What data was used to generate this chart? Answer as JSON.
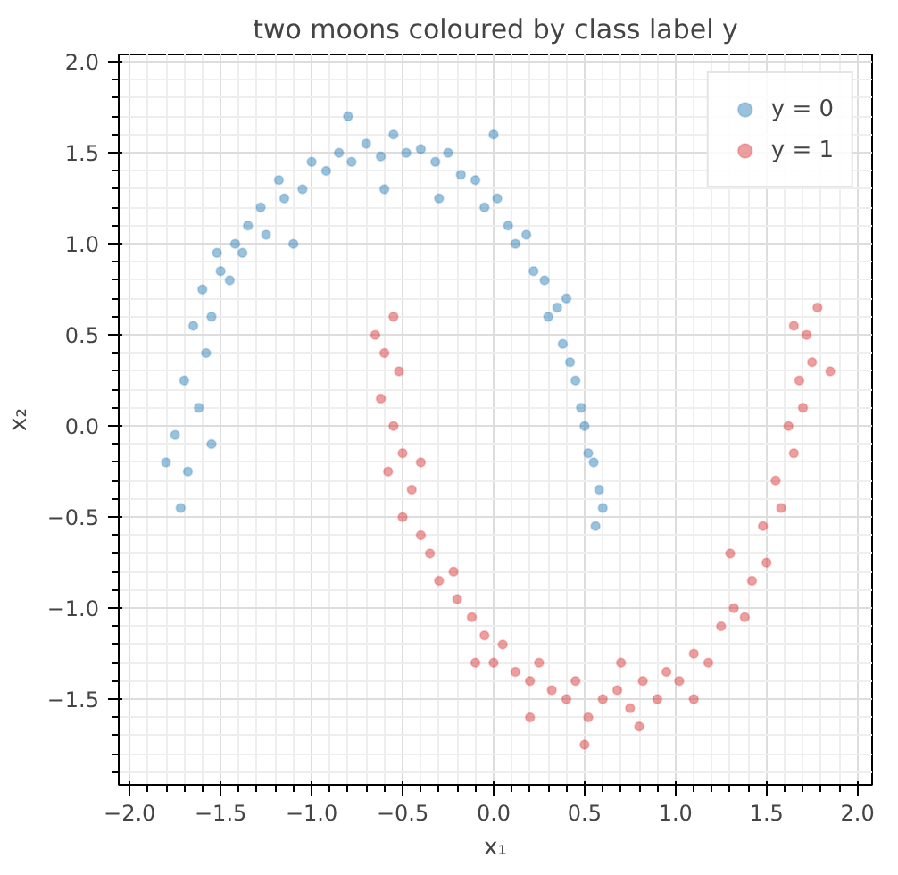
{
  "chart_data": {
    "type": "scatter",
    "title": "two moons coloured by class label y",
    "xlabel": "x₁",
    "ylabel": "x₂",
    "xlim": [
      -2.06,
      2.08
    ],
    "ylim": [
      -1.97,
      2.04
    ],
    "xticks": [
      {
        "value": -2,
        "label": "−2.0"
      },
      {
        "value": -1.5,
        "label": "−1.5"
      },
      {
        "value": -1,
        "label": "−1.0"
      },
      {
        "value": -0.5,
        "label": "−0.5"
      },
      {
        "value": 0,
        "label": "0.0"
      },
      {
        "value": 0.5,
        "label": "0.5"
      },
      {
        "value": 1,
        "label": "1.0"
      },
      {
        "value": 1.5,
        "label": "1.5"
      },
      {
        "value": 2,
        "label": "2.0"
      }
    ],
    "yticks": [
      {
        "value": -1.5,
        "label": "−1.5"
      },
      {
        "value": -1,
        "label": "−1.0"
      },
      {
        "value": -0.5,
        "label": "−0.5"
      },
      {
        "value": 0,
        "label": "0.0"
      },
      {
        "value": 0.5,
        "label": "0.5"
      },
      {
        "value": 1,
        "label": "1.0"
      },
      {
        "value": 1.5,
        "label": "1.5"
      },
      {
        "value": 2,
        "label": "2.0"
      }
    ],
    "grid": true,
    "legend": "top right",
    "marker": "circle",
    "series": [
      {
        "name": "y = 0",
        "color": "#1f77b4",
        "x": [
          -1.72,
          -1.68,
          -1.75,
          -1.62,
          -1.7,
          -1.58,
          -1.65,
          -1.55,
          -1.6,
          -1.5,
          -1.52,
          -1.42,
          -1.45,
          -1.35,
          -1.38,
          -1.28,
          -1.25,
          -1.15,
          -1.18,
          -1.05,
          -1.0,
          -0.92,
          -0.85,
          -0.78,
          -0.7,
          -0.62,
          -0.55,
          -0.48,
          -0.4,
          -0.32,
          -0.25,
          -0.18,
          -0.1,
          -0.05,
          0.02,
          0.08,
          0.12,
          0.18,
          0.22,
          0.28,
          0.3,
          0.35,
          0.38,
          0.42,
          0.45,
          0.48,
          0.5,
          0.52,
          0.55,
          0.58,
          0.6,
          0.56,
          -0.6,
          -0.3,
          -1.1,
          0.4,
          -1.55,
          -1.8,
          -0.8,
          0.0
        ],
        "values": [
          -0.45,
          -0.25,
          -0.05,
          0.1,
          0.25,
          0.4,
          0.55,
          0.6,
          0.75,
          0.85,
          0.95,
          1.0,
          0.8,
          1.1,
          0.95,
          1.2,
          1.05,
          1.25,
          1.35,
          1.3,
          1.45,
          1.4,
          1.5,
          1.45,
          1.55,
          1.48,
          1.6,
          1.5,
          1.52,
          1.45,
          1.5,
          1.38,
          1.35,
          1.2,
          1.25,
          1.1,
          1.0,
          1.05,
          0.85,
          0.8,
          0.6,
          0.65,
          0.45,
          0.35,
          0.25,
          0.1,
          0.0,
          -0.15,
          -0.2,
          -0.35,
          -0.45,
          -0.55,
          1.3,
          1.25,
          1.0,
          0.7,
          -0.1,
          -0.2,
          1.7,
          1.6
        ]
      },
      {
        "name": "y = 1",
        "color": "#d62728",
        "x": [
          -0.55,
          -0.6,
          -0.52,
          -0.62,
          -0.55,
          -0.5,
          -0.58,
          -0.45,
          -0.5,
          -0.4,
          -0.35,
          -0.3,
          -0.22,
          -0.2,
          -0.12,
          -0.05,
          0.0,
          0.05,
          0.12,
          0.2,
          0.25,
          0.32,
          0.4,
          0.45,
          0.52,
          0.6,
          0.68,
          0.75,
          0.82,
          0.9,
          0.95,
          1.02,
          1.1,
          1.18,
          1.25,
          1.32,
          1.38,
          1.42,
          1.5,
          1.48,
          1.58,
          1.55,
          1.65,
          1.62,
          1.7,
          1.68,
          1.75,
          1.72,
          1.78,
          1.65,
          -0.65,
          0.5,
          0.8,
          -0.1,
          1.3,
          0.7,
          -0.4,
          1.85,
          0.2,
          1.1
        ],
        "values": [
          0.6,
          0.4,
          0.3,
          0.15,
          0.0,
          -0.15,
          -0.25,
          -0.35,
          -0.5,
          -0.6,
          -0.7,
          -0.85,
          -0.8,
          -0.95,
          -1.05,
          -1.15,
          -1.3,
          -1.2,
          -1.35,
          -1.4,
          -1.3,
          -1.45,
          -1.5,
          -1.4,
          -1.6,
          -1.5,
          -1.45,
          -1.55,
          -1.4,
          -1.5,
          -1.35,
          -1.4,
          -1.25,
          -1.3,
          -1.1,
          -1.0,
          -1.05,
          -0.85,
          -0.75,
          -0.55,
          -0.45,
          -0.3,
          -0.15,
          0.0,
          0.1,
          0.25,
          0.35,
          0.5,
          0.65,
          0.55,
          0.5,
          -1.75,
          -1.65,
          -1.3,
          -0.7,
          -1.3,
          -0.2,
          0.3,
          -1.6,
          -1.5
        ]
      }
    ]
  }
}
